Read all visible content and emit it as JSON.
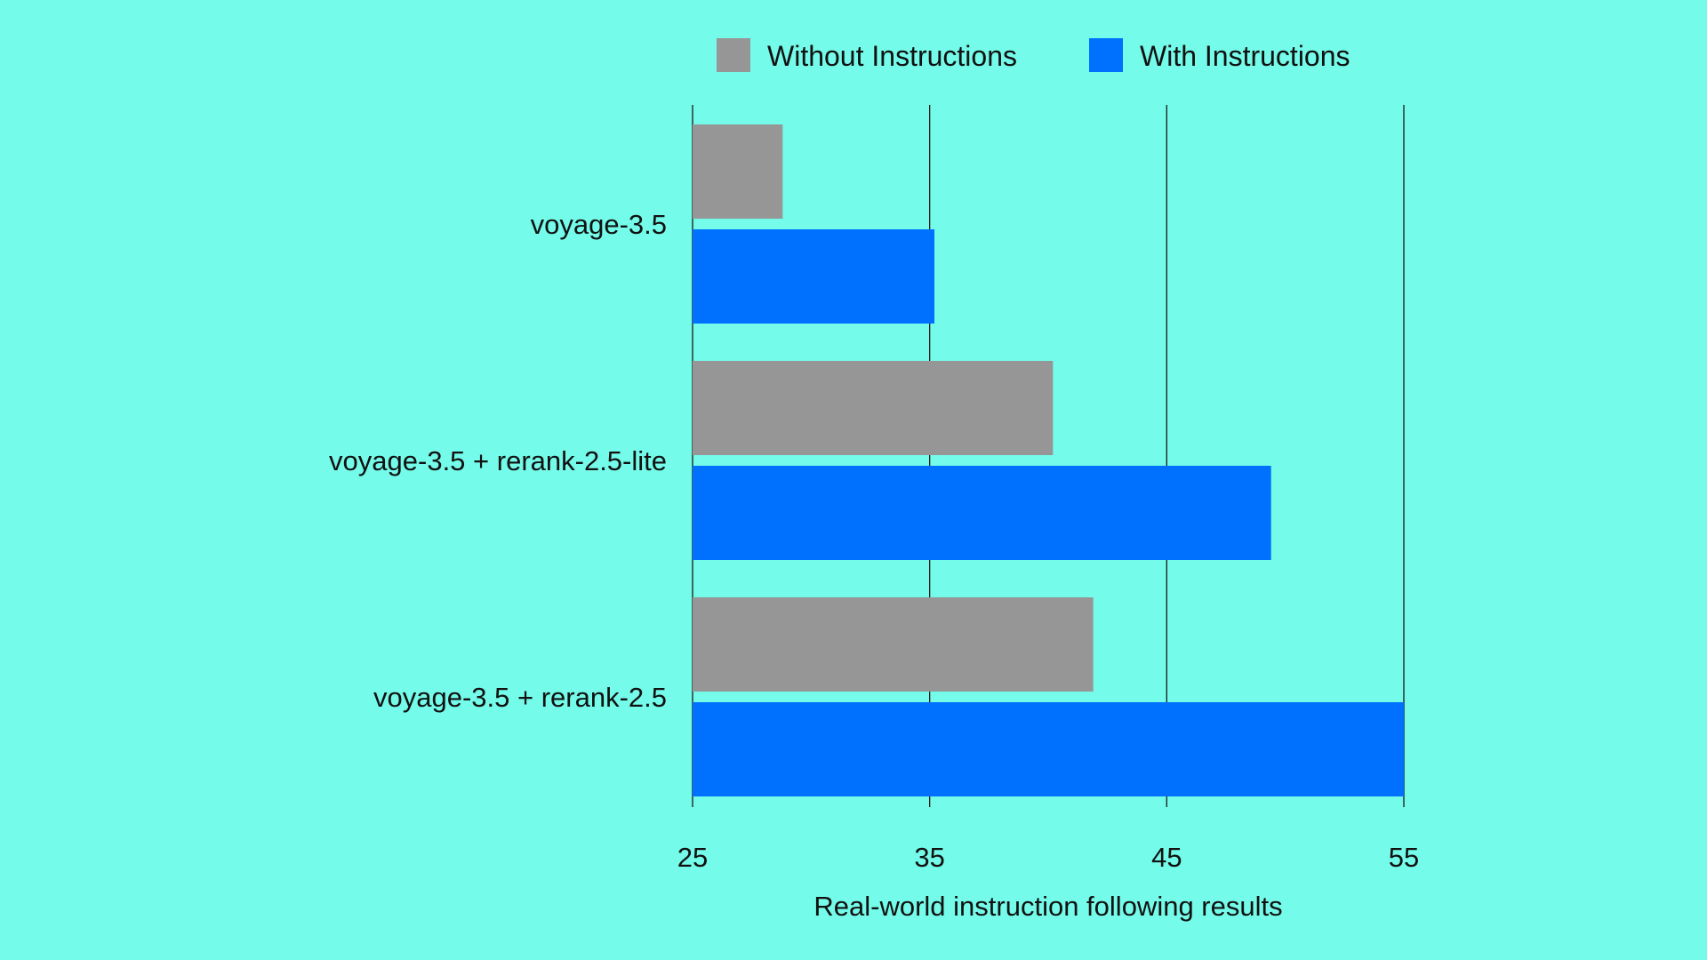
{
  "chart_data": {
    "type": "bar",
    "orientation": "horizontal",
    "categories": [
      "voyage-3.5",
      "voyage-3.5 + rerank-2.5-lite",
      "voyage-3.5 + rerank-2.5"
    ],
    "series": [
      {
        "name": "Without Instructions",
        "color": "#969696",
        "values": [
          28.8,
          40.2,
          41.9
        ]
      },
      {
        "name": "With Instructions",
        "color": "#0070FF",
        "values": [
          35.2,
          49.4,
          55.0
        ]
      }
    ],
    "xlabel": "Real-world instruction following results",
    "ylabel": "",
    "xlim": [
      25,
      55
    ],
    "xticks": [
      25,
      35,
      45,
      55
    ],
    "grid": true,
    "legend_position": "top"
  },
  "colors": {
    "background": "#74FBE9",
    "gridline": "#1a1a1a",
    "text": "#111111"
  }
}
